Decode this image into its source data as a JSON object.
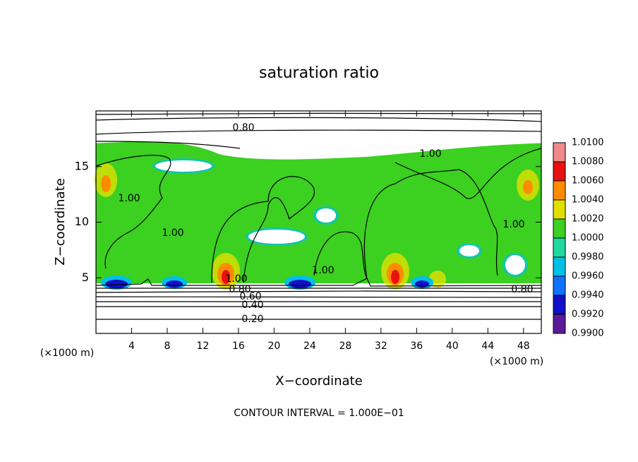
{
  "chart_data": {
    "type": "contour",
    "title": "saturation ratio",
    "x_label": "X−coordinate",
    "y_label": "Z−coordinate",
    "x_unit": "(×1000 m)",
    "x_unit_right": "(×1000 m)",
    "footnote": "CONTOUR INTERVAL = 1.000E−01",
    "xlim": [
      0,
      50
    ],
    "ylim": [
      0,
      20
    ],
    "xticks": [
      4,
      8,
      12,
      16,
      20,
      24,
      28,
      32,
      36,
      40,
      44,
      48
    ],
    "yticks": [
      5,
      10,
      15
    ],
    "contour_labels": [
      "0.80",
      "1.00",
      "1.00",
      "1.00",
      "1.00",
      "1.00",
      "0.80",
      "0.60",
      "0.40",
      "0.20",
      "0.80",
      "1.00"
    ],
    "colorbar": {
      "lim": [
        0.99,
        1.01
      ],
      "ticks": [
        {
          "value": 0.99,
          "label": "0.9900"
        },
        {
          "value": 0.992,
          "label": "0.9920"
        },
        {
          "value": 0.994,
          "label": "0.9940"
        },
        {
          "value": 0.996,
          "label": "0.9960"
        },
        {
          "value": 0.998,
          "label": "0.9980"
        },
        {
          "value": 1.0,
          "label": "1.0000"
        },
        {
          "value": 1.002,
          "label": "1.0020"
        },
        {
          "value": 1.004,
          "label": "1.0040"
        },
        {
          "value": 1.006,
          "label": "1.0060"
        },
        {
          "value": 1.008,
          "label": "1.0080"
        },
        {
          "value": 1.01,
          "label": "1.0100"
        }
      ],
      "colors": [
        "#5a1a9a",
        "#1010c8",
        "#1070ff",
        "#00c0e8",
        "#20d8a0",
        "#3cd020",
        "#e0e000",
        "#ff8c00",
        "#e81010",
        "#f08a8a"
      ]
    }
  }
}
